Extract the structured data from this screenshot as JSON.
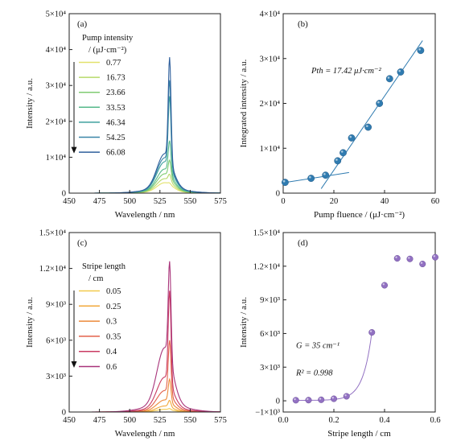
{
  "chart_data": [
    {
      "id": "a",
      "panel_label": "(a)",
      "type": "line",
      "xlabel": "Wavelength / nm",
      "ylabel": "Intensity / a.u.",
      "xlim": [
        450,
        575
      ],
      "ylim": [
        0,
        50000
      ],
      "xticks": [
        450,
        475,
        500,
        525,
        550,
        575
      ],
      "yticks": [
        {
          "v": 0,
          "label": "0"
        },
        {
          "v": 10000,
          "label": "1×10⁴"
        },
        {
          "v": 20000,
          "label": "2×10⁴"
        },
        {
          "v": 30000,
          "label": "3×10⁴"
        },
        {
          "v": 40000,
          "label": "4×10⁴"
        },
        {
          "v": 50000,
          "label": "5×10⁴"
        }
      ],
      "legend_title_line1": "Pump intensity",
      "legend_title_line2": "/ (μJ·cm⁻²)",
      "peak_wavelength": 533,
      "series": [
        {
          "name": "0.77",
          "color": "#e3e26b",
          "peak": 3000,
          "shoulder": 2600
        },
        {
          "name": "16.73",
          "color": "#b6d96a",
          "peak": 5500,
          "shoulder": 3600
        },
        {
          "name": "23.66",
          "color": "#7fcb72",
          "peak": 9500,
          "shoulder": 4800
        },
        {
          "name": "33.53",
          "color": "#56b98a",
          "peak": 15000,
          "shoulder": 6000
        },
        {
          "name": "46.34",
          "color": "#3fa19e",
          "peak": 27500,
          "shoulder": 7800
        },
        {
          "name": "54.25",
          "color": "#3a86a8",
          "peak": 32000,
          "shoulder": 8800
        },
        {
          "name": "66.08",
          "color": "#2f5f9c",
          "peak": 38500,
          "shoulder": 9800
        }
      ]
    },
    {
      "id": "b",
      "panel_label": "(b)",
      "type": "scatter",
      "xlabel": "Pump fluence / (μJ·cm⁻²)",
      "ylabel": "Integrated intensity / a.u.",
      "xlim": [
        0,
        60
      ],
      "ylim": [
        0,
        40000
      ],
      "xticks": [
        0,
        20,
        40,
        60
      ],
      "yticks": [
        {
          "v": 0,
          "label": "0"
        },
        {
          "v": 10000,
          "label": "1×10⁴"
        },
        {
          "v": 20000,
          "label": "2×10⁴"
        },
        {
          "v": 30000,
          "label": "3×10⁴"
        },
        {
          "v": 40000,
          "label": "4×10⁴"
        }
      ],
      "annotation": "Pth = 17.42 μJ·cm⁻²",
      "color": "#2f7bb0",
      "points": [
        [
          0.77,
          2400
        ],
        [
          11,
          3300
        ],
        [
          16.73,
          4000
        ],
        [
          21.5,
          7200
        ],
        [
          23.66,
          9000
        ],
        [
          27,
          12300
        ],
        [
          33.53,
          14700
        ],
        [
          38,
          20000
        ],
        [
          42,
          25500
        ],
        [
          46.34,
          27000
        ],
        [
          54.25,
          31800
        ]
      ],
      "fit_low": [
        [
          0,
          2300
        ],
        [
          26,
          4600
        ]
      ],
      "fit_high": [
        [
          15,
          1000
        ],
        [
          55,
          34000
        ]
      ]
    },
    {
      "id": "c",
      "panel_label": "(c)",
      "type": "line",
      "xlabel": "Wavelength / nm",
      "ylabel": "Intensity / a.u.",
      "xlim": [
        450,
        575
      ],
      "ylim": [
        0,
        15000
      ],
      "xticks": [
        450,
        475,
        500,
        525,
        550,
        575
      ],
      "yticks": [
        {
          "v": 0,
          "label": "0"
        },
        {
          "v": 3000,
          "label": "3×10³"
        },
        {
          "v": 6000,
          "label": "6×10³"
        },
        {
          "v": 9000,
          "label": "9×10³"
        },
        {
          "v": 12000,
          "label": "1.2×10⁴"
        },
        {
          "v": 15000,
          "label": "1.5×10⁴"
        }
      ],
      "legend_title_line1": "Stripe length",
      "legend_title_line2": "/ cm",
      "peak_wavelength": 533,
      "series": [
        {
          "name": "0.05",
          "color": "#f2c94c",
          "peak": 300,
          "shoulder": 200
        },
        {
          "name": "0.25",
          "color": "#f2a93b",
          "peak": 1000,
          "shoulder": 450
        },
        {
          "name": "0.3",
          "color": "#ec8a3a",
          "peak": 2800,
          "shoulder": 900
        },
        {
          "name": "0.35",
          "color": "#e2604a",
          "peak": 6100,
          "shoulder": 1600
        },
        {
          "name": "0.4",
          "color": "#c93b62",
          "peak": 10300,
          "shoulder": 2600
        },
        {
          "name": "0.6",
          "color": "#a8347a",
          "peak": 12900,
          "shoulder": 4800
        }
      ]
    },
    {
      "id": "d",
      "panel_label": "(d)",
      "type": "scatter",
      "xlabel": "Stripe length / cm",
      "ylabel": "Intensity / a.u.",
      "xlim": [
        0,
        0.6
      ],
      "ylim": [
        -1000,
        15000
      ],
      "xticks": [
        0,
        0.2,
        0.4,
        0.6
      ],
      "xtick_labels": [
        "0.0",
        "0.2",
        "0.4",
        "0.6"
      ],
      "yticks": [
        {
          "v": -1000,
          "label": "−1×10³"
        },
        {
          "v": 0,
          "label": "0"
        },
        {
          "v": 3000,
          "label": "3×10³"
        },
        {
          "v": 6000,
          "label": "6×10³"
        },
        {
          "v": 9000,
          "label": "9×10³"
        },
        {
          "v": 12000,
          "label": "1.2×10⁴"
        },
        {
          "v": 15000,
          "label": "1.5×10⁴"
        }
      ],
      "annotation_gain": "G = 35 cm⁻¹",
      "annotation_r2": "R² = 0.998",
      "color": "#9271c2",
      "points": [
        [
          0.05,
          50
        ],
        [
          0.1,
          60
        ],
        [
          0.15,
          90
        ],
        [
          0.2,
          180
        ],
        [
          0.25,
          400
        ],
        [
          0.35,
          6100
        ],
        [
          0.4,
          10300
        ],
        [
          0.45,
          12700
        ],
        [
          0.5,
          12650
        ],
        [
          0.55,
          12200
        ],
        [
          0.6,
          12800
        ]
      ],
      "fit_range": [
        0.05,
        0.35
      ]
    }
  ]
}
